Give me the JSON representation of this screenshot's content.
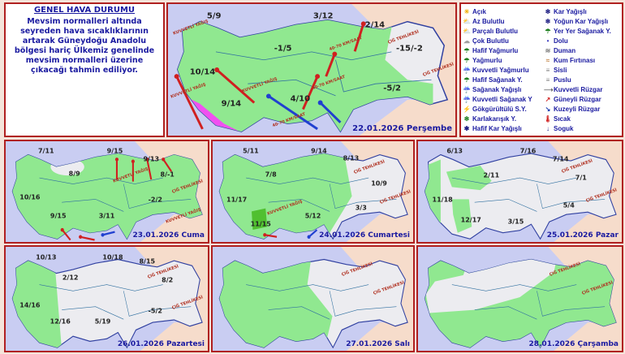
{
  "summary": {
    "title": "GENEL HAVA DURUMU",
    "text": "Mevsim normalleri altında seyreden hava sıcaklıklarının artarak Güneydoğu Anadolu bölgesi hariç Ülkemiz genelinde mevsim normalleri üzerine çıkacağı tahmin ediliyor."
  },
  "legend": [
    {
      "icon": "sun-icon",
      "label": "Açık",
      "color": "#f0b000"
    },
    {
      "icon": "partly-sunny-icon",
      "label": "Az Bulutlu",
      "color": "#e0a030"
    },
    {
      "icon": "partly-cloudy-icon",
      "label": "Parçalı Bulutlu",
      "color": "#d09060"
    },
    {
      "icon": "cloudy-icon",
      "label": "Çok Bulutlu",
      "color": "#a0a0a0"
    },
    {
      "icon": "light-rain-icon",
      "label": "Hafif Yağmurlu",
      "color": "#208020"
    },
    {
      "icon": "rain-icon",
      "label": "Yağmurlu",
      "color": "#208020"
    },
    {
      "icon": "heavy-rain-icon",
      "label": "Kuvvetli Yağmurlu",
      "color": "#106010"
    },
    {
      "icon": "light-shower-icon",
      "label": "Hafif Sağanak Y.",
      "color": "#208020"
    },
    {
      "icon": "shower-icon",
      "label": "Sağanak Yağışlı",
      "color": "#208020"
    },
    {
      "icon": "heavy-shower-icon",
      "label": "Kuvvetli Sağanak Y",
      "color": "#106010"
    },
    {
      "icon": "thunderstorm-icon",
      "label": "Gökgürültülü S.Y.",
      "color": "#d02020"
    },
    {
      "icon": "sleet-icon",
      "label": "Karlakarışık Y.",
      "color": "#208020"
    },
    {
      "icon": "light-snow-icon",
      "label": "Hafif Kar Yağışlı",
      "color": "#1a1a80"
    },
    {
      "icon": "snow-icon",
      "label": "Kar Yağışlı",
      "color": "#1a1a80"
    },
    {
      "icon": "heavy-snow-icon",
      "label": "Yoğun Kar Yağışlı",
      "color": "#1a1a80"
    },
    {
      "icon": "scattered-shower-icon",
      "label": "Yer Yer Sağanak Y.",
      "color": "#208020"
    },
    {
      "icon": "hail-icon",
      "label": "Dolu",
      "color": "#4040c0"
    },
    {
      "icon": "smoke-icon",
      "label": "Duman",
      "color": "#808080"
    },
    {
      "icon": "sandstorm-icon",
      "label": "Kum Fırtınası",
      "color": "#c08040"
    },
    {
      "icon": "fog-icon",
      "label": "Sisli",
      "color": "#808080"
    },
    {
      "icon": "haze-icon",
      "label": "Puslu",
      "color": "#808080"
    },
    {
      "icon": "strong-wind-icon",
      "label": "Kuvvetli Rüzgar",
      "color": "#606060"
    },
    {
      "icon": "south-wind-icon",
      "label": "Güneyli Rüzgar",
      "color": "#d02020"
    },
    {
      "icon": "north-wind-icon",
      "label": "Kuzeyli Rüzgar",
      "color": "#1a3ab0"
    },
    {
      "icon": "hot-icon",
      "label": "Sıcak",
      "color": "#d02020"
    },
    {
      "icon": "cold-icon",
      "label": "Soguk",
      "color": "#1a1a80"
    }
  ],
  "colors": {
    "sea": "#c9cdf2",
    "land_dry": "#ececf0",
    "rain_area": "#90e890",
    "heavy_rain_area": "#f050f0",
    "outside": "#f6dccb",
    "border": "#b02020"
  },
  "maps": {
    "main": {
      "date": "22.01.2026 Perşembe",
      "temps": [
        "5/9",
        "3/12",
        "2/14",
        "-1/5",
        "-15/-2",
        "10/14",
        "9/14",
        "4/10",
        "-5/2"
      ],
      "warnings": [
        "KUVVETLİ YAĞIŞ",
        "ÇIĞ TEHLİKESİ",
        "ÇIĞ TEHLİKESİ",
        "40-70 KM/SAAT",
        "KUVVETLİ YAĞIŞ",
        "KUVVETLİ YAĞIŞ",
        "40-70 KM/SAAT",
        "40-70 KM/SAAT"
      ]
    },
    "d23": {
      "date": "23.01.2026 Cuma",
      "temps": [
        "7/11",
        "9/15",
        "9/13",
        "8/9",
        "8/-1",
        "10/16",
        "-2/2",
        "9/15",
        "3/11"
      ],
      "warnings": [
        "ÇIĞ TEHLİKESİ",
        "KUVVETLİ YAĞIŞ",
        "KUVVETLİ YAĞIŞ"
      ]
    },
    "d24": {
      "date": "24.01.2026 Cumartesi",
      "temps": [
        "5/11",
        "9/14",
        "8/13",
        "7/8",
        "10/9",
        "11/17",
        "3/3",
        "5/12",
        "11/15"
      ],
      "warnings": [
        "ÇIĞ TEHLİKESİ",
        "ÇIĞ TEHLİKESİ",
        "KUVVETLİ YAĞIŞ"
      ]
    },
    "d25": {
      "date": "25.01.2026 Pazar",
      "temps": [
        "6/13",
        "7/16",
        "7/14",
        "2/11",
        "7/1",
        "11/18",
        "5/4",
        "12/17",
        "3/15"
      ],
      "warnings": [
        "ÇIĞ TEHLİKESİ",
        "ÇIĞ TEHLİKESİ"
      ]
    },
    "d26": {
      "date": "26.01.2026 Pazartesi",
      "temps": [
        "10/13",
        "10/18",
        "8/15",
        "2/12",
        "8/2",
        "14/16",
        "-5/2",
        "12/16",
        "5/19"
      ],
      "warnings": [
        "ÇIĞ TEHLİKESİ",
        "ÇIĞ TEHLİKESİ"
      ]
    },
    "d27": {
      "date": "27.01.2026 Salı",
      "temps": [],
      "warnings": [
        "ÇIĞ TEHLİKESİ",
        "ÇIĞ TEHLİKESİ"
      ]
    },
    "d28": {
      "date": "28.01.2026 Çarşamba",
      "temps": [],
      "warnings": [
        "ÇIĞ TEHLİKESİ",
        "ÇIĞ TEHLİKESİ"
      ]
    }
  }
}
